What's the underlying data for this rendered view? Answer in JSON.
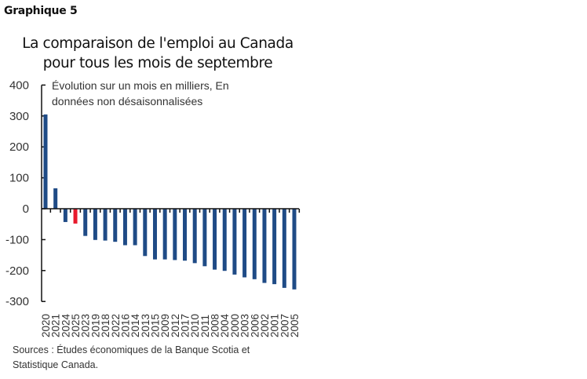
{
  "figure_label": "Graphique 5",
  "title_line1": "La comparaison de l'emploi au Canada",
  "title_line2": "pour tous les mois de septembre",
  "subtitle_line1": "Évolution sur un mois en milliers, En",
  "subtitle_line2": "données non désaisonnalisées",
  "sources_line1": "Sources : Études économiques de la Banque Scotia et",
  "sources_line2": "Statistique Canada.",
  "colors": {
    "bar": "#1f4b86",
    "highlight": "#e8192c",
    "axis": "#111111"
  },
  "chart_data": {
    "type": "bar",
    "title": "La comparaison de l'emploi au Canada pour tous les mois de septembre",
    "subtitle": "Évolution sur un mois en milliers, En données non désaisonnalisées",
    "xlabel": "",
    "ylabel": "",
    "ylim": [
      -300,
      400
    ],
    "yticks": [
      400,
      300,
      200,
      100,
      0,
      -100,
      -200,
      -300
    ],
    "grid": false,
    "legend": null,
    "categories": [
      "2020",
      "2021",
      "2024",
      "2025",
      "2023",
      "2019",
      "2018",
      "2022",
      "2016",
      "2014",
      "2013",
      "2015",
      "2009",
      "2012",
      "2017",
      "2010",
      "2011",
      "2008",
      "2004",
      "2000",
      "2003",
      "2006",
      "2002",
      "2001",
      "2007",
      "2005"
    ],
    "values": [
      305,
      66,
      -43,
      -48,
      -88,
      -101,
      -103,
      -107,
      -118,
      -118,
      -153,
      -164,
      -164,
      -166,
      -168,
      -176,
      -186,
      -197,
      -201,
      -213,
      -222,
      -228,
      -240,
      -244,
      -256,
      -261
    ],
    "highlight_category": "2025",
    "annotations": [
      "Sources : Études économiques de la Banque Scotia et Statistique Canada."
    ]
  }
}
